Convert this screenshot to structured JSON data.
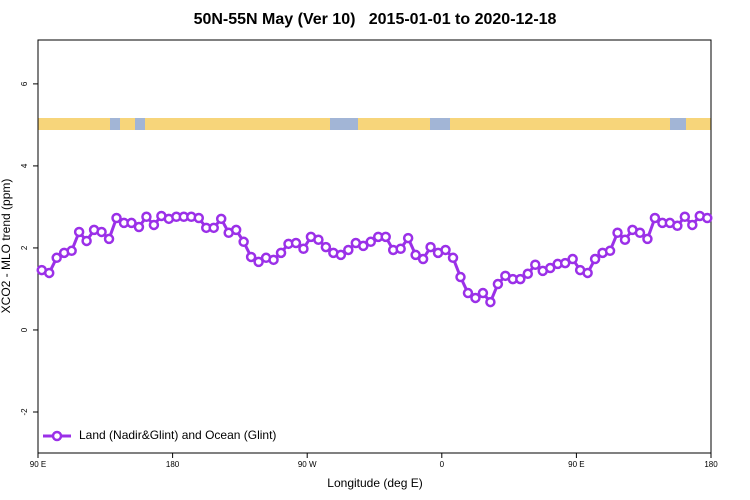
{
  "chart_data": {
    "type": "line",
    "title": "50N-55N May (Ver 10)   2015-01-01 to 2020-12-18",
    "x_label": "Longitude (deg E)",
    "y_label": "XCO2 - MLO trend (ppm)",
    "x": [
      92.5,
      97.5,
      102.5,
      107.5,
      112.5,
      117.5,
      122.5,
      127.5,
      132.5,
      137.5,
      142.5,
      147.5,
      152.5,
      157.5,
      162.5,
      167.5,
      172.5,
      177.5,
      182.5,
      187.5,
      192.5,
      197.5,
      202.5,
      207.5,
      212.5,
      217.5,
      222.5,
      227.5,
      232.5,
      237.5,
      242.5,
      247.5,
      252.5,
      257.5,
      262.5,
      267.5,
      272.5,
      277.5,
      282.5,
      287.5,
      292.5,
      297.5,
      302.5,
      307.5,
      312.5,
      317.5,
      322.5,
      327.5,
      332.5,
      337.5,
      342.5,
      347.5,
      352.5,
      357.5,
      362.5,
      367.5,
      372.5,
      377.5,
      382.5,
      387.5,
      392.5,
      397.5,
      402.5,
      407.5,
      412.5,
      417.5,
      422.5,
      427.5,
      432.5,
      437.5,
      442.5,
      447.5,
      452.5,
      457.5,
      462.5,
      467.5,
      472.5,
      477.5,
      482.5,
      487.5,
      492.5,
      497.5,
      502.5,
      507.5,
      512.5,
      517.5,
      522.5,
      527.5,
      532.5,
      537.5
    ],
    "series": [
      {
        "name": "Land (Nadir&Glint) and Ocean (Glint)",
        "color": "#9b30e8",
        "values": [
          1.46,
          1.39,
          1.76,
          1.88,
          1.93,
          2.39,
          2.17,
          2.44,
          2.39,
          2.22,
          2.73,
          2.61,
          2.61,
          2.51,
          2.76,
          2.56,
          2.78,
          2.71,
          2.76,
          2.76,
          2.76,
          2.73,
          2.49,
          2.49,
          2.71,
          2.37,
          2.44,
          2.15,
          1.78,
          1.66,
          1.76,
          1.71,
          1.88,
          2.1,
          2.12,
          1.98,
          2.27,
          2.2,
          2.02,
          1.88,
          1.83,
          1.95,
          2.12,
          2.05,
          2.15,
          2.27,
          2.27,
          1.95,
          1.98,
          2.24,
          1.83,
          1.73,
          2.02,
          1.88,
          1.95,
          1.76,
          1.29,
          0.9,
          0.78,
          0.9,
          0.68,
          1.12,
          1.32,
          1.24,
          1.24,
          1.37,
          1.59,
          1.44,
          1.51,
          1.61,
          1.63,
          1.73,
          1.46,
          1.39,
          1.73,
          1.88,
          1.93,
          2.37,
          2.2,
          2.44,
          2.37,
          2.22,
          2.73,
          2.61,
          2.61,
          2.54,
          2.76,
          2.56,
          2.78,
          2.73
        ]
      }
    ],
    "xlim": [
      90,
      540
    ],
    "xticks": [
      {
        "value": 90,
        "label": "90 E"
      },
      180,
      {
        "value": 270,
        "label": "90 W"
      },
      {
        "value": 360,
        "label": "0"
      },
      {
        "value": 450,
        "label": "90 E"
      },
      {
        "value": 540,
        "label": "180"
      }
    ],
    "ylim": [
      -3,
      7.07
    ],
    "yticks": [
      -2,
      0,
      2,
      4,
      6
    ],
    "legend": "bottom-left",
    "grid": false
  }
}
